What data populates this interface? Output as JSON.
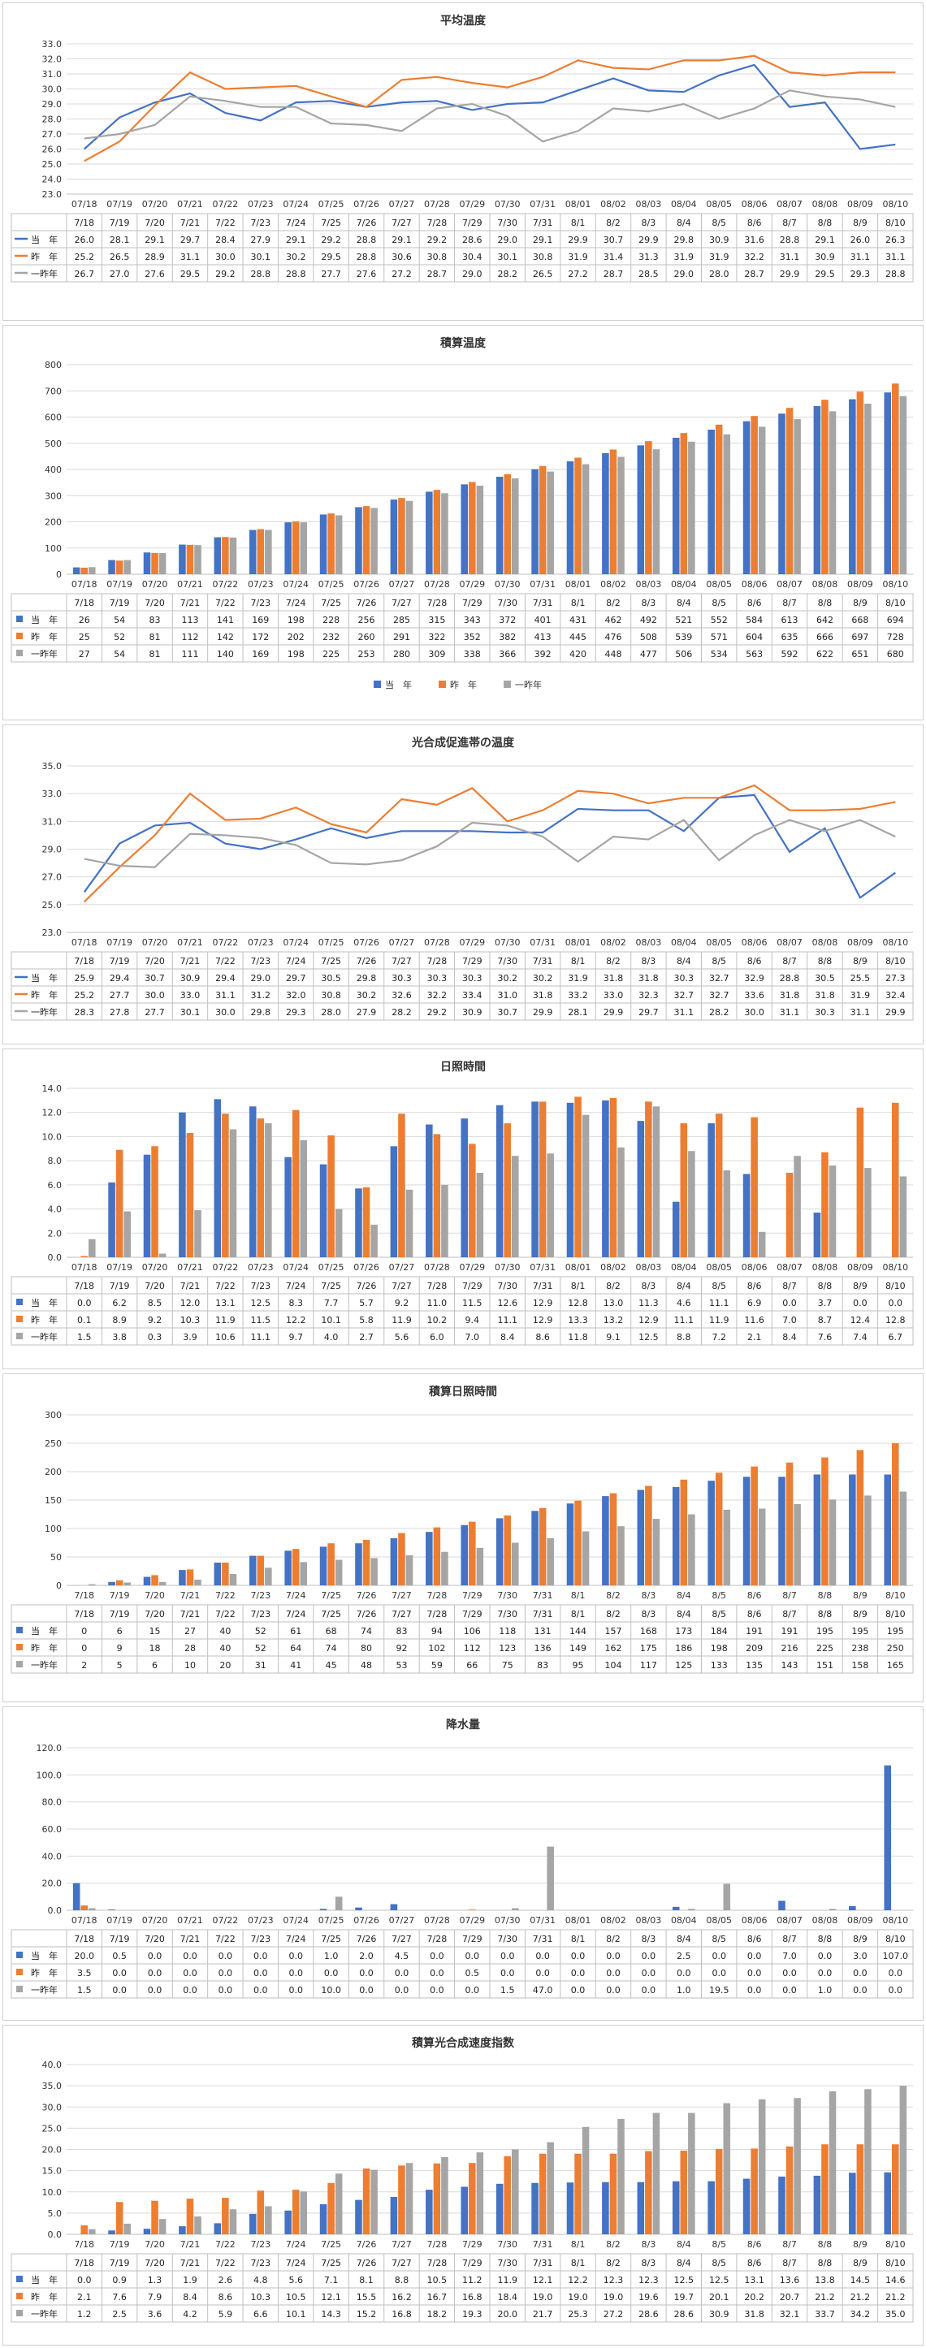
{
  "chart_data": [
    {
      "type": "line",
      "title": "平均温度",
      "ylim": [
        23.0,
        33.0
      ],
      "ytick_step": 1.0,
      "ytick_decimals": 1,
      "categories": [
        "7/18",
        "7/19",
        "7/20",
        "7/21",
        "7/22",
        "7/23",
        "7/24",
        "7/25",
        "7/26",
        "7/27",
        "7/28",
        "7/29",
        "7/30",
        "7/31",
        "8/1",
        "8/2",
        "8/3",
        "8/4",
        "8/5",
        "8/6",
        "8/7",
        "8/8",
        "8/9",
        "8/10"
      ],
      "axis_labels": [
        "07/18",
        "07/19",
        "07/20",
        "07/21",
        "07/22",
        "07/23",
        "07/24",
        "07/25",
        "07/26",
        "07/27",
        "07/28",
        "07/29",
        "07/30",
        "07/31",
        "08/01",
        "08/02",
        "08/03",
        "08/04",
        "08/05",
        "08/06",
        "08/07",
        "08/08",
        "08/09",
        "08/10"
      ],
      "legend_position": "table",
      "series": [
        {
          "name": "当　年",
          "color": "#4472c4",
          "values": [
            26.0,
            28.1,
            29.1,
            29.7,
            28.4,
            27.9,
            29.1,
            29.2,
            28.8,
            29.1,
            29.2,
            28.6,
            29.0,
            29.1,
            29.9,
            30.7,
            29.9,
            29.8,
            30.9,
            31.6,
            28.8,
            29.1,
            26.0,
            26.3
          ]
        },
        {
          "name": "昨　年",
          "color": "#ed7d31",
          "values": [
            25.2,
            26.5,
            28.9,
            31.1,
            30.0,
            30.1,
            30.2,
            29.5,
            28.8,
            30.6,
            30.8,
            30.4,
            30.1,
            30.8,
            31.9,
            31.4,
            31.3,
            31.9,
            31.9,
            32.2,
            31.1,
            30.9,
            31.1,
            31.1
          ]
        },
        {
          "name": "一昨年",
          "color": "#a5a5a5",
          "values": [
            26.7,
            27.0,
            27.6,
            29.5,
            29.2,
            28.8,
            28.8,
            27.7,
            27.6,
            27.2,
            28.7,
            29.0,
            28.2,
            26.5,
            27.2,
            28.7,
            28.5,
            29.0,
            28.0,
            28.7,
            29.9,
            29.5,
            29.3,
            28.8
          ]
        }
      ]
    },
    {
      "type": "bar",
      "title": "積算温度",
      "ylim": [
        0,
        800
      ],
      "ytick_step": 100,
      "ytick_decimals": 0,
      "categories": [
        "7/18",
        "7/19",
        "7/20",
        "7/21",
        "7/22",
        "7/23",
        "7/24",
        "7/25",
        "7/26",
        "7/27",
        "7/28",
        "7/29",
        "7/30",
        "7/31",
        "8/1",
        "8/2",
        "8/3",
        "8/4",
        "8/5",
        "8/6",
        "8/7",
        "8/8",
        "8/9",
        "8/10"
      ],
      "axis_labels": [
        "07/18",
        "07/19",
        "07/20",
        "07/21",
        "07/22",
        "07/23",
        "07/24",
        "07/25",
        "07/26",
        "07/27",
        "07/28",
        "07/29",
        "07/30",
        "07/31",
        "08/01",
        "08/02",
        "08/03",
        "08/04",
        "08/05",
        "08/06",
        "08/07",
        "08/08",
        "08/09",
        "08/10"
      ],
      "legend_position": "bottom",
      "series": [
        {
          "name": "当　年",
          "color": "#4472c4",
          "values": [
            26,
            54,
            83,
            113,
            141,
            169,
            198,
            228,
            256,
            285,
            315,
            343,
            372,
            401,
            431,
            462,
            492,
            521,
            552,
            584,
            613,
            642,
            668,
            694
          ]
        },
        {
          "name": "昨　年",
          "color": "#ed7d31",
          "values": [
            25,
            52,
            81,
            112,
            142,
            172,
            202,
            232,
            260,
            291,
            322,
            352,
            382,
            413,
            445,
            476,
            508,
            539,
            571,
            604,
            635,
            666,
            697,
            728
          ]
        },
        {
          "name": "一昨年",
          "color": "#a5a5a5",
          "values": [
            27,
            54,
            81,
            111,
            140,
            169,
            198,
            225,
            253,
            280,
            309,
            338,
            366,
            392,
            420,
            448,
            477,
            506,
            534,
            563,
            592,
            622,
            651,
            680
          ]
        }
      ]
    },
    {
      "type": "line",
      "title": "光合成促進帯の温度",
      "ylim": [
        23.0,
        35.0
      ],
      "ytick_step": 2.0,
      "ytick_decimals": 1,
      "categories": [
        "7/18",
        "7/19",
        "7/20",
        "7/21",
        "7/22",
        "7/23",
        "7/24",
        "7/25",
        "7/26",
        "7/27",
        "7/28",
        "7/29",
        "7/30",
        "7/31",
        "8/1",
        "8/2",
        "8/3",
        "8/4",
        "8/5",
        "8/6",
        "8/7",
        "8/8",
        "8/9",
        "8/10"
      ],
      "axis_labels": [
        "07/18",
        "07/19",
        "07/20",
        "07/21",
        "07/22",
        "07/23",
        "07/24",
        "07/25",
        "07/26",
        "07/27",
        "07/28",
        "07/29",
        "07/30",
        "07/31",
        "08/01",
        "08/02",
        "08/03",
        "08/04",
        "08/05",
        "08/06",
        "08/07",
        "08/08",
        "08/09",
        "08/10"
      ],
      "legend_position": "table",
      "series": [
        {
          "name": "当　年",
          "color": "#4472c4",
          "values": [
            25.9,
            29.4,
            30.7,
            30.9,
            29.4,
            29.0,
            29.7,
            30.5,
            29.8,
            30.3,
            30.3,
            30.3,
            30.2,
            30.2,
            31.9,
            31.8,
            31.8,
            30.3,
            32.7,
            32.9,
            28.8,
            30.5,
            25.5,
            27.3
          ]
        },
        {
          "name": "昨　年",
          "color": "#ed7d31",
          "values": [
            25.2,
            27.7,
            30.0,
            33.0,
            31.1,
            31.2,
            32.0,
            30.8,
            30.2,
            32.6,
            32.2,
            33.4,
            31.0,
            31.8,
            33.2,
            33.0,
            32.3,
            32.7,
            32.7,
            33.6,
            31.8,
            31.8,
            31.9,
            32.4
          ]
        },
        {
          "name": "一昨年",
          "color": "#a5a5a5",
          "values": [
            28.3,
            27.8,
            27.7,
            30.1,
            30.0,
            29.8,
            29.3,
            28.0,
            27.9,
            28.2,
            29.2,
            30.9,
            30.7,
            29.9,
            28.1,
            29.9,
            29.7,
            31.1,
            28.2,
            30.0,
            31.1,
            30.3,
            31.1,
            29.9
          ]
        }
      ]
    },
    {
      "type": "bar",
      "title": "日照時間",
      "ylim": [
        0.0,
        14.0
      ],
      "ytick_step": 2.0,
      "ytick_decimals": 1,
      "categories": [
        "7/18",
        "7/19",
        "7/20",
        "7/21",
        "7/22",
        "7/23",
        "7/24",
        "7/25",
        "7/26",
        "7/27",
        "7/28",
        "7/29",
        "7/30",
        "7/31",
        "8/1",
        "8/2",
        "8/3",
        "8/4",
        "8/5",
        "8/6",
        "8/7",
        "8/8",
        "8/9",
        "8/10"
      ],
      "axis_labels": [
        "07/18",
        "07/19",
        "07/20",
        "07/21",
        "07/22",
        "07/23",
        "07/24",
        "07/25",
        "07/26",
        "07/27",
        "07/28",
        "07/29",
        "07/30",
        "07/31",
        "08/01",
        "08/02",
        "08/03",
        "08/04",
        "08/05",
        "08/06",
        "08/07",
        "08/08",
        "08/09",
        "08/10"
      ],
      "legend_position": "table",
      "series": [
        {
          "name": "当　年",
          "color": "#4472c4",
          "values": [
            0.0,
            6.2,
            8.5,
            12.0,
            13.1,
            12.5,
            8.3,
            7.7,
            5.7,
            9.2,
            11.0,
            11.5,
            12.6,
            12.9,
            12.8,
            13.0,
            11.3,
            4.6,
            11.1,
            6.9,
            0.0,
            3.7,
            0.0,
            0.0
          ]
        },
        {
          "name": "昨　年",
          "color": "#ed7d31",
          "values": [
            0.1,
            8.9,
            9.2,
            10.3,
            11.9,
            11.5,
            12.2,
            10.1,
            5.8,
            11.9,
            10.2,
            9.4,
            11.1,
            12.9,
            13.3,
            13.2,
            12.9,
            11.1,
            11.9,
            11.6,
            7.0,
            8.7,
            12.4,
            12.8
          ]
        },
        {
          "name": "一昨年",
          "color": "#a5a5a5",
          "values": [
            1.5,
            3.8,
            0.3,
            3.9,
            10.6,
            11.1,
            9.7,
            4.0,
            2.7,
            5.6,
            6.0,
            7.0,
            8.4,
            8.6,
            11.8,
            9.1,
            12.5,
            8.8,
            7.2,
            2.1,
            8.4,
            7.6,
            7.4,
            6.7
          ]
        }
      ]
    },
    {
      "type": "bar",
      "title": "積算日照時間",
      "ylim": [
        0,
        300
      ],
      "ytick_step": 50,
      "ytick_decimals": 0,
      "categories": [
        "7/18",
        "7/19",
        "7/20",
        "7/21",
        "7/22",
        "7/23",
        "7/24",
        "7/25",
        "7/26",
        "7/27",
        "7/28",
        "7/29",
        "7/30",
        "7/31",
        "8/1",
        "8/2",
        "8/3",
        "8/4",
        "8/5",
        "8/6",
        "8/7",
        "8/8",
        "8/9",
        "8/10"
      ],
      "axis_labels": [
        "7/18",
        "7/19",
        "7/20",
        "7/21",
        "7/22",
        "7/23",
        "7/24",
        "7/25",
        "7/26",
        "7/27",
        "7/28",
        "7/29",
        "7/30",
        "7/31",
        "8/1",
        "8/2",
        "8/3",
        "8/4",
        "8/5",
        "8/6",
        "8/7",
        "8/8",
        "8/9",
        "8/10"
      ],
      "legend_position": "table",
      "series": [
        {
          "name": "当　年",
          "color": "#4472c4",
          "values": [
            0,
            6,
            15,
            27,
            40,
            52,
            61,
            68,
            74,
            83,
            94,
            106,
            118,
            131,
            144,
            157,
            168,
            173,
            184,
            191,
            191,
            195,
            195,
            195
          ]
        },
        {
          "name": "昨　年",
          "color": "#ed7d31",
          "values": [
            0,
            9,
            18,
            28,
            40,
            52,
            64,
            74,
            80,
            92,
            102,
            112,
            123,
            136,
            149,
            162,
            175,
            186,
            198,
            209,
            216,
            225,
            238,
            250
          ]
        },
        {
          "name": "一昨年",
          "color": "#a5a5a5",
          "values": [
            2,
            5,
            6,
            10,
            20,
            31,
            41,
            45,
            48,
            53,
            59,
            66,
            75,
            83,
            95,
            104,
            117,
            125,
            133,
            135,
            143,
            151,
            158,
            165
          ]
        }
      ]
    },
    {
      "type": "bar",
      "title": "降水量",
      "ylim": [
        0.0,
        120.0
      ],
      "ytick_step": 20.0,
      "ytick_decimals": 1,
      "categories": [
        "7/18",
        "7/19",
        "7/20",
        "7/21",
        "7/22",
        "7/23",
        "7/24",
        "7/25",
        "7/26",
        "7/27",
        "7/28",
        "7/29",
        "7/30",
        "7/31",
        "8/1",
        "8/2",
        "8/3",
        "8/4",
        "8/5",
        "8/6",
        "8/7",
        "8/8",
        "8/9",
        "8/10"
      ],
      "axis_labels": [
        "07/18",
        "07/19",
        "07/20",
        "07/21",
        "07/22",
        "07/23",
        "07/24",
        "07/25",
        "07/26",
        "07/27",
        "07/28",
        "07/29",
        "07/30",
        "07/31",
        "08/01",
        "08/02",
        "08/03",
        "08/04",
        "08/05",
        "08/06",
        "08/07",
        "08/08",
        "08/09",
        "08/10"
      ],
      "legend_position": "table",
      "series": [
        {
          "name": "当　年",
          "color": "#4472c4",
          "values": [
            20.0,
            0.5,
            0.0,
            0.0,
            0.0,
            0.0,
            0.0,
            1.0,
            2.0,
            4.5,
            0.0,
            0.0,
            0.0,
            0.0,
            0.0,
            0.0,
            0.0,
            2.5,
            0.0,
            0.0,
            7.0,
            0.0,
            3.0,
            107.0
          ]
        },
        {
          "name": "昨　年",
          "color": "#ed7d31",
          "values": [
            3.5,
            0.0,
            0.0,
            0.0,
            0.0,
            0.0,
            0.0,
            0.0,
            0.0,
            0.0,
            0.0,
            0.5,
            0.0,
            0.0,
            0.0,
            0.0,
            0.0,
            0.0,
            0.0,
            0.0,
            0.0,
            0.0,
            0.0,
            0.0
          ]
        },
        {
          "name": "一昨年",
          "color": "#a5a5a5",
          "values": [
            1.5,
            0.0,
            0.0,
            0.0,
            0.0,
            0.0,
            0.0,
            10.0,
            0.0,
            0.0,
            0.0,
            0.0,
            1.5,
            47.0,
            0.0,
            0.0,
            0.0,
            1.0,
            19.5,
            0.0,
            0.0,
            1.0,
            0.0,
            0.0
          ]
        }
      ]
    },
    {
      "type": "bar",
      "title": "積算光合成速度指数",
      "ylim": [
        0.0,
        40.0
      ],
      "ytick_step": 5.0,
      "ytick_decimals": 1,
      "categories": [
        "7/18",
        "7/19",
        "7/20",
        "7/21",
        "7/22",
        "7/23",
        "7/24",
        "7/25",
        "7/26",
        "7/27",
        "7/28",
        "7/29",
        "7/30",
        "7/31",
        "8/1",
        "8/2",
        "8/3",
        "8/4",
        "8/5",
        "8/6",
        "8/7",
        "8/8",
        "8/9",
        "8/10"
      ],
      "axis_labels": [
        "7/18",
        "7/19",
        "7/20",
        "7/21",
        "7/22",
        "7/23",
        "7/24",
        "7/25",
        "7/26",
        "7/27",
        "7/28",
        "7/29",
        "7/30",
        "7/31",
        "8/1",
        "8/2",
        "8/3",
        "8/4",
        "8/5",
        "8/6",
        "8/7",
        "8/8",
        "8/9",
        "8/10"
      ],
      "legend_position": "table",
      "series": [
        {
          "name": "当　年",
          "color": "#4472c4",
          "values": [
            0.0,
            0.9,
            1.3,
            1.9,
            2.6,
            4.8,
            5.6,
            7.1,
            8.1,
            8.8,
            10.5,
            11.2,
            11.9,
            12.1,
            12.2,
            12.3,
            12.3,
            12.5,
            12.5,
            13.1,
            13.6,
            13.8,
            14.5,
            14.6
          ]
        },
        {
          "name": "昨　年",
          "color": "#ed7d31",
          "values": [
            2.1,
            7.6,
            7.9,
            8.4,
            8.6,
            10.3,
            10.5,
            12.1,
            15.5,
            16.2,
            16.7,
            16.8,
            18.4,
            19.0,
            19.0,
            19.0,
            19.6,
            19.7,
            20.1,
            20.2,
            20.7,
            21.2,
            21.2,
            21.2
          ]
        },
        {
          "name": "一昨年",
          "color": "#a5a5a5",
          "values": [
            1.2,
            2.5,
            3.6,
            4.2,
            5.9,
            6.6,
            10.1,
            14.3,
            15.2,
            16.8,
            18.2,
            19.3,
            20.0,
            21.7,
            25.3,
            27.2,
            28.6,
            28.6,
            30.9,
            31.8,
            32.1,
            33.7,
            34.2,
            35.0
          ]
        }
      ]
    }
  ]
}
